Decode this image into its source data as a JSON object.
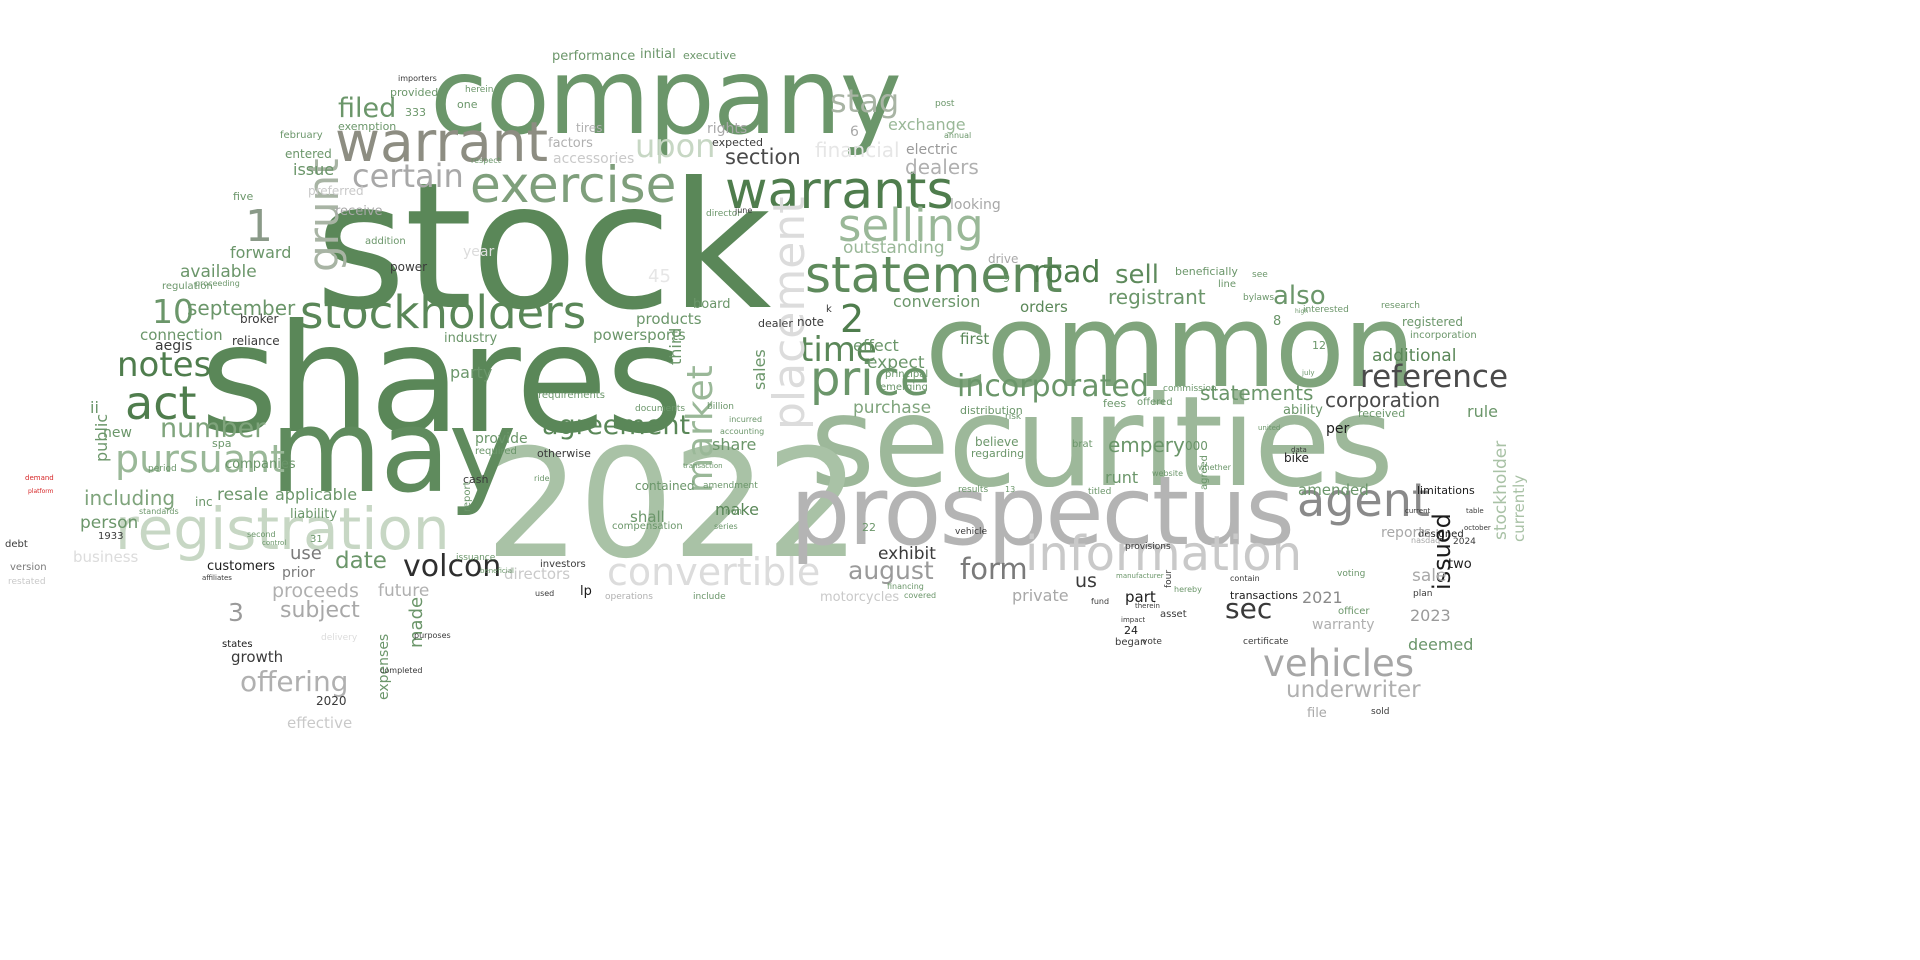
{
  "colors": {
    "background": "#ffffff",
    "green_dark": "#4a7a48",
    "green_mid": "#5f8a5d",
    "green_soft": "#7ea27b",
    "green_pale": "#a9c3a6",
    "sage": "#98b496",
    "gray_dark": "#555555",
    "gray_mid": "#9a9a9a",
    "gray_light": "#cccccc",
    "black": "#1c1c1c",
    "accent_red": "#d62728"
  },
  "words": [
    {
      "text": "stock",
      "color": "#5a8758"
    },
    {
      "text": "shares",
      "color": "#5a8758"
    },
    {
      "text": "common",
      "color": "#7fa47c"
    },
    {
      "text": "securities",
      "color": "#9db89a"
    },
    {
      "text": "company",
      "color": "#6b966a"
    },
    {
      "text": "2022",
      "color": "#a9c2a6"
    },
    {
      "text": "may",
      "color": "#5f8b5d"
    },
    {
      "text": "prospectus",
      "color": "#b4b4b4"
    },
    {
      "text": "warrants",
      "color": "#4f7d4d"
    },
    {
      "text": "exercise",
      "color": "#7f9f7c"
    },
    {
      "text": "warrant",
      "color": "#8d8d82"
    },
    {
      "text": "statement",
      "color": "#5e8a5c"
    },
    {
      "text": "stockholders",
      "color": "#5a8758"
    },
    {
      "text": "registration",
      "color": "#c7d7c4"
    },
    {
      "text": "information",
      "color": "#c9c9c9"
    },
    {
      "text": "price",
      "color": "#6b966a"
    },
    {
      "text": "selling",
      "color": "#9ab898"
    },
    {
      "text": "agent",
      "color": "#8a8a8a"
    },
    {
      "text": "act",
      "color": "#4f7d4d"
    },
    {
      "text": "pursuant",
      "color": "#9ab898"
    },
    {
      "text": "notes",
      "color": "#4f7d4d"
    },
    {
      "text": "reference",
      "color": "#4a4a4a"
    },
    {
      "text": "time",
      "color": "#5a8758"
    },
    {
      "text": "incorporated",
      "color": "#6b966a"
    },
    {
      "text": "market",
      "color": "#9ab898"
    },
    {
      "text": "placement",
      "color": "#dcdcdc"
    },
    {
      "text": "volcon",
      "color": "#2e2e2e"
    },
    {
      "text": "convertible",
      "color": "#dcdcdc"
    },
    {
      "text": "vehicles",
      "color": "#a6a6a6"
    },
    {
      "text": "form",
      "color": "#7a7a7a"
    },
    {
      "text": "agreement",
      "color": "#5a8758"
    },
    {
      "text": "number",
      "color": "#7fa47c"
    },
    {
      "text": "certain",
      "color": "#a8a8a8"
    },
    {
      "text": "filed",
      "color": "#6b966a"
    },
    {
      "text": "stag",
      "color": "#a8b4a4"
    },
    {
      "text": "upon",
      "color": "#c7d7c4"
    },
    {
      "text": "section",
      "color": "#4a4a4a"
    },
    {
      "text": "sec",
      "color": "#3a3a3a"
    },
    {
      "text": "date",
      "color": "#6b966a"
    },
    {
      "text": "offering",
      "color": "#b0b0b0"
    },
    {
      "text": "subject",
      "color": "#a8a8a8"
    },
    {
      "text": "august",
      "color": "#9a9a9a"
    },
    {
      "text": "underwriter",
      "color": "#b0b0b0"
    },
    {
      "text": "road",
      "color": "#4f7d4d"
    },
    {
      "text": "sell",
      "color": "#5e8a5c"
    },
    {
      "text": "also",
      "color": "#6b966a"
    },
    {
      "text": "registrant",
      "color": "#6b966a"
    },
    {
      "text": "10",
      "color": "#6b966a"
    },
    {
      "text": "2",
      "color": "#4f7d4d"
    },
    {
      "text": "1",
      "color": "#8a9a88"
    },
    {
      "text": "3",
      "color": "#9a9a9a"
    },
    {
      "text": "grunt",
      "color": "#a8b4a4"
    },
    {
      "text": "september",
      "color": "#6b966a"
    },
    {
      "text": "financial",
      "color": "#e6e6e6"
    },
    {
      "text": "dealers",
      "color": "#b0b0b0"
    },
    {
      "text": "exchange",
      "color": "#9ab898"
    },
    {
      "text": "statements",
      "color": "#6b966a"
    },
    {
      "text": "corporation",
      "color": "#4a4a4a"
    },
    {
      "text": "additional",
      "color": "#5a8758"
    },
    {
      "text": "empery",
      "color": "#6b966a"
    },
    {
      "text": "issued",
      "color": "#1c1c1c"
    },
    {
      "text": "proceeds",
      "color": "#b0b0b0"
    },
    {
      "text": "including",
      "color": "#7fa47c"
    },
    {
      "text": "resale",
      "color": "#6b966a"
    },
    {
      "text": "applicable",
      "color": "#6b966a"
    },
    {
      "text": "available",
      "color": "#6b966a"
    },
    {
      "text": "forward",
      "color": "#6b966a"
    },
    {
      "text": "connection",
      "color": "#6b966a"
    },
    {
      "text": "outstanding",
      "color": "#9ab898"
    },
    {
      "text": "conversion",
      "color": "#6b966a"
    },
    {
      "text": "effect",
      "color": "#6b966a"
    },
    {
      "text": "expect",
      "color": "#6b966a"
    },
    {
      "text": "purchase",
      "color": "#7fa47c"
    },
    {
      "text": "party",
      "color": "#6b966a"
    },
    {
      "text": "products",
      "color": "#6b966a"
    },
    {
      "text": "powersports",
      "color": "#6b966a"
    },
    {
      "text": "orders",
      "color": "#5a8758"
    },
    {
      "text": "first",
      "color": "#5a8758"
    },
    {
      "text": "exhibit",
      "color": "#3a3a3a"
    },
    {
      "text": "make",
      "color": "#5a8758"
    },
    {
      "text": "shall",
      "color": "#6b966a"
    },
    {
      "text": "provide",
      "color": "#6b966a"
    },
    {
      "text": "share",
      "color": "#6b966a"
    },
    {
      "text": "sales",
      "color": "#6b966a"
    },
    {
      "text": "third",
      "color": "#6b966a"
    },
    {
      "text": "future",
      "color": "#b0b0b0"
    },
    {
      "text": "made",
      "color": "#6b966a"
    },
    {
      "text": "directors",
      "color": "#c9c9c9"
    },
    {
      "text": "private",
      "color": "#a8a8a8"
    },
    {
      "text": "us",
      "color": "#3a3a3a"
    },
    {
      "text": "part",
      "color": "#1c1c1c"
    },
    {
      "text": "2021",
      "color": "#8a8a8a"
    },
    {
      "text": "2023",
      "color": "#9a9a9a"
    },
    {
      "text": "warranty",
      "color": "#b0b0b0"
    },
    {
      "text": "deemed",
      "color": "#6b966a"
    },
    {
      "text": "sale",
      "color": "#a8a8a8"
    },
    {
      "text": "amended",
      "color": "#6b966a"
    },
    {
      "text": "runt",
      "color": "#6b966a"
    },
    {
      "text": "use",
      "color": "#7a7a7a"
    },
    {
      "text": "person",
      "color": "#6b966a"
    },
    {
      "text": "public",
      "color": "#6b966a"
    },
    {
      "text": "ii",
      "color": "#6b966a"
    },
    {
      "text": "new",
      "color": "#6b966a"
    },
    {
      "text": "business",
      "color": "#dcdcdc"
    },
    {
      "text": "growth",
      "color": "#3a3a3a"
    },
    {
      "text": "effective",
      "color": "#c9c9c9"
    },
    {
      "text": "expenses",
      "color": "#6b966a"
    },
    {
      "text": "customers",
      "color": "#1c1c1c"
    },
    {
      "text": "prior",
      "color": "#7a7a7a"
    },
    {
      "text": "liability",
      "color": "#6b966a"
    },
    {
      "text": "motorcycles",
      "color": "#c9c9c9"
    },
    {
      "text": "file",
      "color": "#a8a8a8"
    },
    {
      "text": "contained",
      "color": "#6b966a"
    },
    {
      "text": "transactions",
      "color": "#1c1c1c"
    },
    {
      "text": "limitations",
      "color": "#1c1c1c"
    },
    {
      "text": "ability",
      "color": "#6b966a"
    },
    {
      "text": "rule",
      "color": "#6b966a"
    },
    {
      "text": "per",
      "color": "#1c1c1c"
    },
    {
      "text": "bike",
      "color": "#1c1c1c"
    },
    {
      "text": "received",
      "color": "#6b966a"
    },
    {
      "text": "registered",
      "color": "#6b966a"
    },
    {
      "text": "incorporation",
      "color": "#6b966a"
    },
    {
      "text": "stockholder",
      "color": "#a9c2a6"
    },
    {
      "text": "currently",
      "color": "#a9c2a6"
    },
    {
      "text": "two",
      "color": "#1c1c1c"
    },
    {
      "text": "designed",
      "color": "#1c1c1c"
    },
    {
      "text": "reports",
      "color": "#a8a8a8"
    },
    {
      "text": "rights",
      "color": "#a8a8a8"
    },
    {
      "text": "factors",
      "color": "#b0b0b0"
    },
    {
      "text": "accessories",
      "color": "#c9c9c9"
    },
    {
      "text": "performance",
      "color": "#6b966a"
    },
    {
      "text": "initial",
      "color": "#6b966a"
    },
    {
      "text": "executive",
      "color": "#6b966a"
    },
    {
      "text": "electric",
      "color": "#9a9a9a"
    },
    {
      "text": "issue",
      "color": "#6b966a"
    },
    {
      "text": "entered",
      "color": "#6b966a"
    },
    {
      "text": "preferred",
      "color": "#c9c9c9"
    },
    {
      "text": "receive",
      "color": "#a8a8a8"
    },
    {
      "text": "power",
      "color": "#3a3a3a"
    },
    {
      "text": "broker",
      "color": "#3a3a3a"
    },
    {
      "text": "aegis",
      "color": "#3a3a3a"
    },
    {
      "text": "reliance",
      "color": "#3a3a3a"
    },
    {
      "text": "industry",
      "color": "#6b966a"
    },
    {
      "text": "year",
      "color": "#dcdcdc"
    },
    {
      "text": "looking",
      "color": "#a8a8a8"
    },
    {
      "text": "board",
      "color": "#6b966a"
    },
    {
      "text": "dealer",
      "color": "#3a3a3a"
    },
    {
      "text": "note",
      "color": "#3a3a3a"
    },
    {
      "text": "distribution",
      "color": "#6b966a"
    },
    {
      "text": "believe",
      "color": "#6b966a"
    },
    {
      "text": "regarding",
      "color": "#6b966a"
    },
    {
      "text": "fees",
      "color": "#6b966a"
    },
    {
      "text": "offered",
      "color": "#6b966a"
    },
    {
      "text": "commission",
      "color": "#6b966a"
    },
    {
      "text": "beneficially",
      "color": "#6b966a"
    },
    {
      "text": "line",
      "color": "#6b966a"
    },
    {
      "text": "certificate",
      "color": "#3a3a3a"
    },
    {
      "text": "sold",
      "color": "#3a3a3a"
    },
    {
      "text": "began",
      "color": "#3a3a3a"
    },
    {
      "text": "vote",
      "color": "#3a3a3a"
    },
    {
      "text": "asset",
      "color": "#3a3a3a"
    },
    {
      "text": "24",
      "color": "#1c1c1c"
    },
    {
      "text": "lp",
      "color": "#1c1c1c"
    },
    {
      "text": "8",
      "color": "#6b966a"
    },
    {
      "text": "12",
      "color": "#6b966a"
    },
    {
      "text": "000",
      "color": "#6b966a"
    },
    {
      "text": "22",
      "color": "#6b966a"
    },
    {
      "text": "31",
      "color": "#6b966a"
    },
    {
      "text": "2020",
      "color": "#3a3a3a"
    },
    {
      "text": "states",
      "color": "#1c1c1c"
    },
    {
      "text": "companies",
      "color": "#6b966a"
    },
    {
      "text": "inc",
      "color": "#6b966a"
    },
    {
      "text": "spa",
      "color": "#6b966a"
    },
    {
      "text": "1933",
      "color": "#3a3a3a"
    },
    {
      "text": "debt",
      "color": "#3a3a3a"
    },
    {
      "text": "version",
      "color": "#7a7a7a"
    },
    {
      "text": "restated",
      "color": "#c9c9c9"
    },
    {
      "text": "demand",
      "color": "#d62728"
    },
    {
      "text": "platform",
      "color": "#d62728"
    },
    {
      "text": "hereby",
      "color": "#6b966a"
    },
    {
      "text": "titled",
      "color": "#6b966a"
    },
    {
      "text": "results",
      "color": "#6b966a"
    },
    {
      "text": "vehicle",
      "color": "#3a3a3a"
    },
    {
      "text": "provisions",
      "color": "#3a3a3a"
    },
    {
      "text": "contain",
      "color": "#3a3a3a"
    },
    {
      "text": "plan",
      "color": "#3a3a3a"
    },
    {
      "text": "officer",
      "color": "#6b966a"
    },
    {
      "text": "voting",
      "color": "#6b966a"
    },
    {
      "text": "nasdaq",
      "color": "#a8a8a8"
    },
    {
      "text": "whether",
      "color": "#6b966a"
    },
    {
      "text": "transaction",
      "color": "#6b966a"
    },
    {
      "text": "compensation",
      "color": "#6b966a"
    },
    {
      "text": "cash",
      "color": "#3a3a3a"
    },
    {
      "text": "otherwise",
      "color": "#3a3a3a"
    },
    {
      "text": "requirements",
      "color": "#6b966a"
    },
    {
      "text": "investors",
      "color": "#3a3a3a"
    },
    {
      "text": "issuance",
      "color": "#6b966a"
    },
    {
      "text": "beneficial",
      "color": "#6b966a"
    },
    {
      "text": "required",
      "color": "#6b966a"
    },
    {
      "text": "amendment",
      "color": "#6b966a"
    },
    {
      "text": "non",
      "color": "#6b966a"
    },
    {
      "text": "series",
      "color": "#6b966a"
    },
    {
      "text": "include",
      "color": "#6b966a"
    },
    {
      "text": "financing",
      "color": "#6b966a"
    },
    {
      "text": "covered",
      "color": "#6b966a"
    },
    {
      "text": "operations",
      "color": "#b0b0b0"
    },
    {
      "text": "ride",
      "color": "#6b966a"
    },
    {
      "text": "used",
      "color": "#3a3a3a"
    },
    {
      "text": "documents",
      "color": "#6b966a"
    },
    {
      "text": "billion",
      "color": "#6b966a"
    },
    {
      "text": "accounting",
      "color": "#6b966a"
    },
    {
      "text": "incurred",
      "color": "#6b966a"
    },
    {
      "text": "emerging",
      "color": "#6b966a"
    },
    {
      "text": "principal",
      "color": "#6b966a"
    },
    {
      "text": "brat",
      "color": "#6b966a"
    },
    {
      "text": "risk",
      "color": "#6b966a"
    },
    {
      "text": "drive",
      "color": "#a8a8a8"
    },
    {
      "text": "tires",
      "color": "#b0b0b0"
    },
    {
      "text": "annual",
      "color": "#6b966a"
    },
    {
      "text": "post",
      "color": "#6b966a"
    },
    {
      "text": "director",
      "color": "#6b966a"
    },
    {
      "text": "expected",
      "color": "#3a3a3a"
    },
    {
      "text": "june",
      "color": "#3a3a3a"
    },
    {
      "text": "k",
      "color": "#3a3a3a"
    },
    {
      "text": "provided",
      "color": "#6b966a"
    },
    {
      "text": "exemption",
      "color": "#6b966a"
    },
    {
      "text": "333",
      "color": "#6b966a"
    },
    {
      "text": "february",
      "color": "#6b966a"
    },
    {
      "text": "five",
      "color": "#6b966a"
    },
    {
      "text": "regulation",
      "color": "#6b966a"
    },
    {
      "text": "proceeding",
      "color": "#6b966a"
    },
    {
      "text": "period",
      "color": "#6b966a"
    },
    {
      "text": "standards",
      "color": "#6b966a"
    },
    {
      "text": "addition",
      "color": "#6b966a"
    },
    {
      "text": "importers",
      "color": "#3a3a3a"
    },
    {
      "text": "herein",
      "color": "#6b966a"
    },
    {
      "text": "one",
      "color": "#6b966a"
    },
    {
      "text": "respect",
      "color": "#6b966a"
    },
    {
      "text": "agreed",
      "color": "#6b966a"
    },
    {
      "text": "completed",
      "color": "#3a3a3a"
    },
    {
      "text": "purposes",
      "color": "#3a3a3a"
    },
    {
      "text": "delivery",
      "color": "#dcdcdc"
    },
    {
      "text": "affiliates",
      "color": "#3a3a3a"
    },
    {
      "text": "second",
      "color": "#6b966a"
    },
    {
      "text": "control",
      "color": "#6b966a"
    },
    {
      "text": "report",
      "color": "#6b966a"
    },
    {
      "text": "45",
      "color": "#e6e6e6"
    },
    {
      "text": "july",
      "color": "#6b966a"
    },
    {
      "text": "high",
      "color": "#6b966a"
    },
    {
      "text": "interested",
      "color": "#6b966a"
    },
    {
      "text": "research",
      "color": "#6b966a"
    },
    {
      "text": "bylaws",
      "color": "#6b966a"
    },
    {
      "text": "table",
      "color": "#3a3a3a"
    },
    {
      "text": "october",
      "color": "#3a3a3a"
    },
    {
      "text": "2024",
      "color": "#3a3a3a"
    },
    {
      "text": "see",
      "color": "#6b966a"
    },
    {
      "text": "website",
      "color": "#6b966a"
    },
    {
      "text": "manufacturer",
      "color": "#6b966a"
    },
    {
      "text": "data",
      "color": "#3a3a3a"
    },
    {
      "text": "united",
      "color": "#6b966a"
    },
    {
      "text": "current",
      "color": "#3a3a3a"
    },
    {
      "text": "four",
      "color": "#3a3a3a"
    },
    {
      "text": "therein",
      "color": "#3a3a3a"
    },
    {
      "text": "fund",
      "color": "#3a3a3a"
    },
    {
      "text": "impact",
      "color": "#3a3a3a"
    },
    {
      "text": "9",
      "color": "#6b966a"
    },
    {
      "text": "13",
      "color": "#6b966a"
    },
    {
      "text": "6",
      "color": "#a8a8a8"
    }
  ]
}
